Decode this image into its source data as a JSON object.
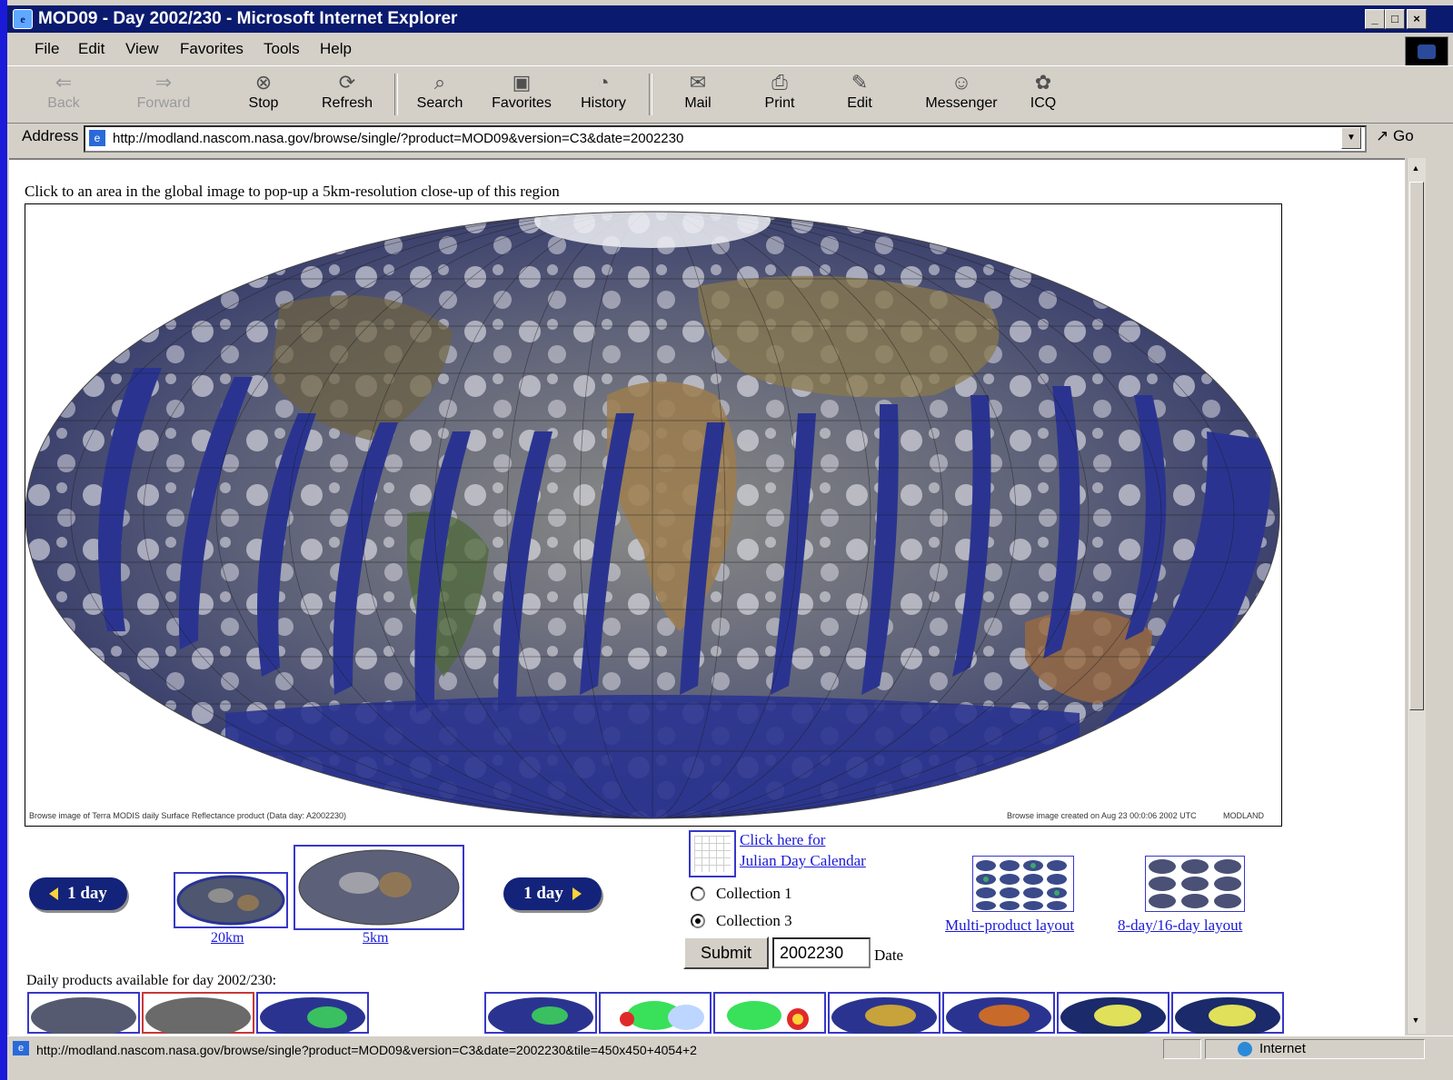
{
  "window": {
    "title": "MOD09 - Day 2002/230 - Microsoft Internet Explorer",
    "controls": [
      "_",
      "□",
      "×"
    ]
  },
  "menu": [
    "File",
    "Edit",
    "View",
    "Favorites",
    "Tools",
    "Help"
  ],
  "toolbar": {
    "buttons": [
      {
        "label": "Back",
        "icon": "back-arrow-icon",
        "enabled": false
      },
      {
        "label": "Forward",
        "icon": "forward-arrow-icon",
        "enabled": false
      },
      {
        "label": "Stop",
        "icon": "stop-icon",
        "enabled": true
      },
      {
        "label": "Refresh",
        "icon": "refresh-icon",
        "enabled": true
      },
      {
        "label": "Search",
        "icon": "search-icon",
        "enabled": true
      },
      {
        "label": "Favorites",
        "icon": "favorites-icon",
        "enabled": true
      },
      {
        "label": "History",
        "icon": "history-icon",
        "enabled": true
      },
      {
        "label": "Mail",
        "icon": "mail-icon",
        "enabled": true
      },
      {
        "label": "Print",
        "icon": "print-icon",
        "enabled": true
      },
      {
        "label": "Edit",
        "icon": "edit-icon",
        "enabled": true
      },
      {
        "label": "Messenger",
        "icon": "messenger-icon",
        "enabled": true
      },
      {
        "label": "ICQ",
        "icon": "icq-icon",
        "enabled": true
      }
    ]
  },
  "address": {
    "label": "Address",
    "url": "http://modland.nascom.nasa.gov/browse/single/?product=MOD09&version=C3&date=2002230",
    "go_label": "Go"
  },
  "page": {
    "instruction": "Click to an area in the global image to pop-up a 5km-resolution close-up of this region",
    "map_caption_left": "Browse image of Terra MODIS daily Surface Reflectance product (Data day: A2002230)",
    "map_caption_right": "Browse image created on Aug 23 00:0:06 2002 UTC",
    "map_caption_brand": "MODLAND",
    "prev_day_label": "1 day",
    "next_day_label": "1 day",
    "thumb_20km_label": "20km",
    "thumb_5km_label": "5km",
    "calendar_link_line1": "Click here for",
    "calendar_link_line2": "Julian Day Calendar",
    "collection_options": [
      {
        "label": "Collection 1",
        "selected": false
      },
      {
        "label": "Collection 3",
        "selected": true
      }
    ],
    "submit_label": "Submit",
    "date_value": "2002230",
    "date_label": "Date",
    "multi_product_label": "Multi-product layout",
    "day8_16_label": "8-day/16-day layout",
    "daily_products_label": "Daily products available for day 2002/230:"
  },
  "status": {
    "text": "http://modland.nascom.nasa.gov/browse/single?product=MOD09&version=C3&date=2002230&tile=450x450+4054+2",
    "zone": "Internet"
  },
  "colors": {
    "background_blue": "#1a1ad8",
    "titlebar": "#0a1a6e",
    "chrome": "#d4d0c8",
    "link": "#1a1ad8",
    "pill": "#13237a",
    "ocean": "#2a3490"
  }
}
